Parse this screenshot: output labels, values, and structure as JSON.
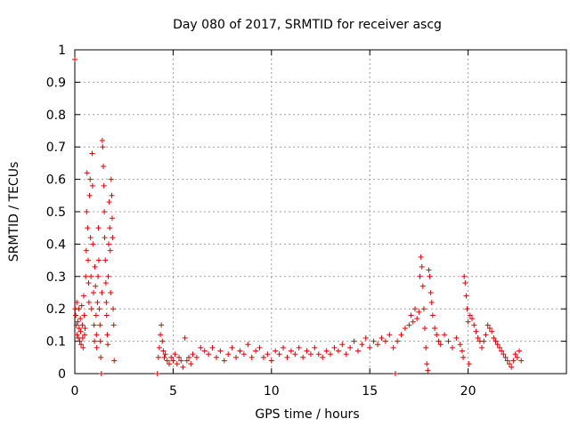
{
  "chart_data": {
    "type": "scatter",
    "title": "Day 080 of 2017, SRMTID for receiver ascg",
    "xlabel": "GPS time / hours",
    "ylabel": "SRMTID / TECUs",
    "xlim": [
      0,
      25
    ],
    "ylim": [
      0,
      1
    ],
    "xticks": [
      0,
      5,
      10,
      15,
      20
    ],
    "yticks": [
      0,
      0.1,
      0.2,
      0.3,
      0.4,
      0.5,
      0.6,
      0.7,
      0.8,
      0.9,
      1
    ],
    "xtick_labels": [
      "0",
      "5",
      "10",
      "15",
      "20"
    ],
    "ytick_labels": [
      "0",
      "0.1",
      "0.2",
      "0.3",
      "0.4",
      "0.5",
      "0.6",
      "0.7",
      "0.8",
      "0.9",
      "1"
    ],
    "grid": true,
    "marker": "+",
    "series": [
      {
        "name": "SRMTID",
        "color": "#e00000",
        "points": [
          [
            0.0,
            0.97
          ],
          [
            0.02,
            0.2
          ],
          [
            0.05,
            0.18
          ],
          [
            0.08,
            0.15
          ],
          [
            0.1,
            0.22
          ],
          [
            0.12,
            0.12
          ],
          [
            0.15,
            0.16
          ],
          [
            0.18,
            0.11
          ],
          [
            0.2,
            0.2
          ],
          [
            0.22,
            0.14
          ],
          [
            0.25,
            0.1
          ],
          [
            0.28,
            0.17
          ],
          [
            0.3,
            0.13
          ],
          [
            0.32,
            0.09
          ],
          [
            0.35,
            0.21
          ],
          [
            0.38,
            0.15
          ],
          [
            0.4,
            0.11
          ],
          [
            0.42,
            0.08
          ],
          [
            0.45,
            0.24
          ],
          [
            0.48,
            0.18
          ],
          [
            0.5,
            0.12
          ],
          [
            0.52,
            0.14
          ],
          [
            0.55,
            0.3
          ],
          [
            0.58,
            0.38
          ],
          [
            0.6,
            0.5
          ],
          [
            0.62,
            0.62
          ],
          [
            0.65,
            0.45
          ],
          [
            0.68,
            0.35
          ],
          [
            0.7,
            0.28
          ],
          [
            0.72,
            0.22
          ],
          [
            0.75,
            0.55
          ],
          [
            0.78,
            0.6
          ],
          [
            0.8,
            0.42
          ],
          [
            0.82,
            0.3
          ],
          [
            0.85,
            0.2
          ],
          [
            0.88,
            0.68
          ],
          [
            0.9,
            0.58
          ],
          [
            0.92,
            0.4
          ],
          [
            0.95,
            0.25
          ],
          [
            0.98,
            0.15
          ],
          [
            1.0,
            0.1
          ],
          [
            1.02,
            0.33
          ],
          [
            1.05,
            0.27
          ],
          [
            1.08,
            0.18
          ],
          [
            1.1,
            0.12
          ],
          [
            1.12,
            0.08
          ],
          [
            1.15,
            0.22
          ],
          [
            1.18,
            0.3
          ],
          [
            1.2,
            0.45
          ],
          [
            1.22,
            0.35
          ],
          [
            1.25,
            0.2
          ],
          [
            1.28,
            0.15
          ],
          [
            1.3,
            0.1
          ],
          [
            1.32,
            0.05
          ],
          [
            1.35,
            0.0
          ],
          [
            1.38,
            0.25
          ],
          [
            1.4,
            0.72
          ],
          [
            1.42,
            0.7
          ],
          [
            1.45,
            0.64
          ],
          [
            1.48,
            0.58
          ],
          [
            1.5,
            0.5
          ],
          [
            1.52,
            0.42
          ],
          [
            1.55,
            0.35
          ],
          [
            1.58,
            0.28
          ],
          [
            1.6,
            0.22
          ],
          [
            1.62,
            0.18
          ],
          [
            1.65,
            0.12
          ],
          [
            1.68,
            0.09
          ],
          [
            1.7,
            0.3
          ],
          [
            1.72,
            0.4
          ],
          [
            1.75,
            0.53
          ],
          [
            1.78,
            0.45
          ],
          [
            1.8,
            0.38
          ],
          [
            1.82,
            0.25
          ],
          [
            1.85,
            0.6
          ],
          [
            1.88,
            0.55
          ],
          [
            1.9,
            0.48
          ],
          [
            1.92,
            0.42
          ],
          [
            1.95,
            0.2
          ],
          [
            1.98,
            0.15
          ],
          [
            2.0,
            0.04
          ],
          [
            4.2,
            0.0
          ],
          [
            4.25,
            0.05
          ],
          [
            4.3,
            0.08
          ],
          [
            4.35,
            0.12
          ],
          [
            4.4,
            0.15
          ],
          [
            4.45,
            0.1
          ],
          [
            4.5,
            0.07
          ],
          [
            4.55,
            0.05
          ],
          [
            4.6,
            0.06
          ],
          [
            4.7,
            0.04
          ],
          [
            4.8,
            0.03
          ],
          [
            4.9,
            0.05
          ],
          [
            5.0,
            0.04
          ],
          [
            5.1,
            0.06
          ],
          [
            5.2,
            0.03
          ],
          [
            5.3,
            0.05
          ],
          [
            5.4,
            0.04
          ],
          [
            5.5,
            0.02
          ],
          [
            5.6,
            0.11
          ],
          [
            5.7,
            0.04
          ],
          [
            5.8,
            0.05
          ],
          [
            5.9,
            0.03
          ],
          [
            6.0,
            0.06
          ],
          [
            6.2,
            0.05
          ],
          [
            6.4,
            0.08
          ],
          [
            6.6,
            0.07
          ],
          [
            6.8,
            0.06
          ],
          [
            7.0,
            0.08
          ],
          [
            7.2,
            0.05
          ],
          [
            7.4,
            0.07
          ],
          [
            7.6,
            0.04
          ],
          [
            7.8,
            0.06
          ],
          [
            8.0,
            0.08
          ],
          [
            8.2,
            0.05
          ],
          [
            8.4,
            0.07
          ],
          [
            8.6,
            0.06
          ],
          [
            8.8,
            0.09
          ],
          [
            9.0,
            0.05
          ],
          [
            9.2,
            0.07
          ],
          [
            9.4,
            0.08
          ],
          [
            9.6,
            0.05
          ],
          [
            9.8,
            0.06
          ],
          [
            10.0,
            0.04
          ],
          [
            10.2,
            0.07
          ],
          [
            10.4,
            0.06
          ],
          [
            10.6,
            0.08
          ],
          [
            10.8,
            0.05
          ],
          [
            11.0,
            0.07
          ],
          [
            11.2,
            0.06
          ],
          [
            11.4,
            0.08
          ],
          [
            11.6,
            0.05
          ],
          [
            11.8,
            0.07
          ],
          [
            12.0,
            0.06
          ],
          [
            12.2,
            0.08
          ],
          [
            12.4,
            0.06
          ],
          [
            12.6,
            0.05
          ],
          [
            12.8,
            0.07
          ],
          [
            13.0,
            0.06
          ],
          [
            13.2,
            0.08
          ],
          [
            13.4,
            0.07
          ],
          [
            13.6,
            0.09
          ],
          [
            13.8,
            0.06
          ],
          [
            14.0,
            0.08
          ],
          [
            14.2,
            0.1
          ],
          [
            14.4,
            0.07
          ],
          [
            14.6,
            0.09
          ],
          [
            14.8,
            0.11
          ],
          [
            15.0,
            0.08
          ],
          [
            15.2,
            0.1
          ],
          [
            15.4,
            0.09
          ],
          [
            15.6,
            0.11
          ],
          [
            15.8,
            0.1
          ],
          [
            16.0,
            0.12
          ],
          [
            16.2,
            0.08
          ],
          [
            16.3,
            0.0
          ],
          [
            16.4,
            0.1
          ],
          [
            16.6,
            0.12
          ],
          [
            16.8,
            0.14
          ],
          [
            17.0,
            0.15
          ],
          [
            17.1,
            0.18
          ],
          [
            17.2,
            0.16
          ],
          [
            17.3,
            0.2
          ],
          [
            17.4,
            0.17
          ],
          [
            17.5,
            0.19
          ],
          [
            17.55,
            0.3
          ],
          [
            17.6,
            0.36
          ],
          [
            17.65,
            0.33
          ],
          [
            17.7,
            0.27
          ],
          [
            17.75,
            0.2
          ],
          [
            17.8,
            0.14
          ],
          [
            17.85,
            0.08
          ],
          [
            17.9,
            0.03
          ],
          [
            17.95,
            0.01
          ],
          [
            18.0,
            0.32
          ],
          [
            18.05,
            0.3
          ],
          [
            18.1,
            0.25
          ],
          [
            18.15,
            0.22
          ],
          [
            18.2,
            0.18
          ],
          [
            18.3,
            0.14
          ],
          [
            18.4,
            0.12
          ],
          [
            18.5,
            0.1
          ],
          [
            18.6,
            0.09
          ],
          [
            18.8,
            0.12
          ],
          [
            19.0,
            0.1
          ],
          [
            19.2,
            0.08
          ],
          [
            19.4,
            0.11
          ],
          [
            19.6,
            0.09
          ],
          [
            19.7,
            0.07
          ],
          [
            19.75,
            0.05
          ],
          [
            19.8,
            0.3
          ],
          [
            19.85,
            0.28
          ],
          [
            19.9,
            0.24
          ],
          [
            19.95,
            0.2
          ],
          [
            20.0,
            0.16
          ],
          [
            20.05,
            0.03
          ],
          [
            20.1,
            0.18
          ],
          [
            20.2,
            0.17
          ],
          [
            20.3,
            0.15
          ],
          [
            20.4,
            0.13
          ],
          [
            20.5,
            0.11
          ],
          [
            20.6,
            0.1
          ],
          [
            20.7,
            0.08
          ],
          [
            20.8,
            0.1
          ],
          [
            20.9,
            0.12
          ],
          [
            21.0,
            0.15
          ],
          [
            21.1,
            0.14
          ],
          [
            21.2,
            0.13
          ],
          [
            21.3,
            0.11
          ],
          [
            21.4,
            0.1
          ],
          [
            21.5,
            0.09
          ],
          [
            21.6,
            0.08
          ],
          [
            21.7,
            0.07
          ],
          [
            21.8,
            0.06
          ],
          [
            21.9,
            0.05
          ],
          [
            22.0,
            0.04
          ],
          [
            22.1,
            0.03
          ],
          [
            22.2,
            0.02
          ],
          [
            22.3,
            0.04
          ],
          [
            22.4,
            0.06
          ],
          [
            22.5,
            0.05
          ],
          [
            22.6,
            0.07
          ],
          [
            22.7,
            0.04
          ]
        ]
      }
    ]
  }
}
